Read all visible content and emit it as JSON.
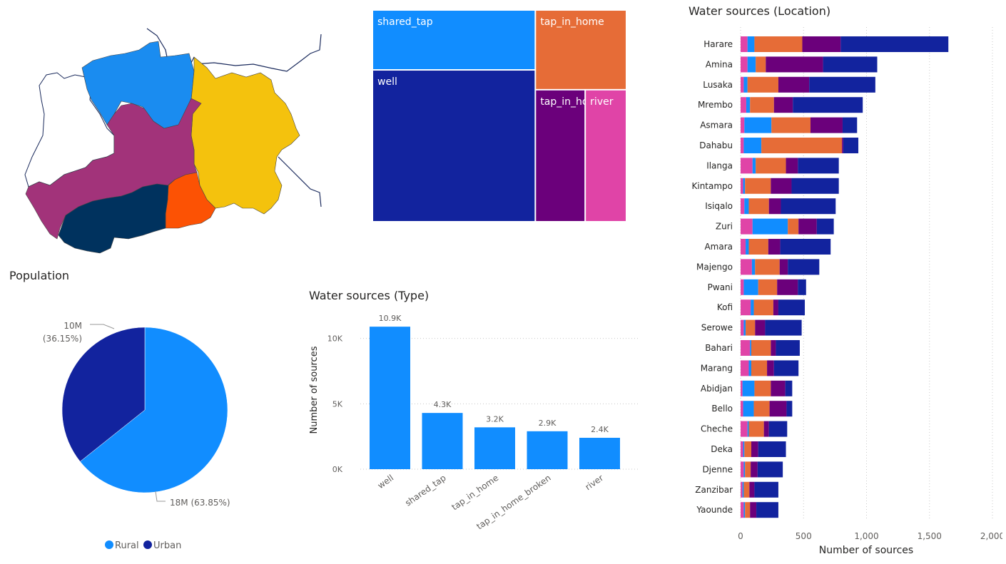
{
  "colors": {
    "shared_tap": "#118dff",
    "tap_in_home": "#e66c37",
    "tap_in_home_broken": "#6b007b",
    "river": "#e044a7",
    "well": "#12239e",
    "rural": "#118dff",
    "urban": "#12239e",
    "map_blue": "#1a8cf0",
    "map_yellow": "#f4c20d",
    "map_purple": "#a2337a",
    "map_orange": "#fc5204",
    "map_navy": "#00325e"
  },
  "treemap": {
    "type": "treemap",
    "items": [
      {
        "label": "shared_tap",
        "value": 4.3,
        "color_key": "shared_tap"
      },
      {
        "label": "well",
        "value": 10.9,
        "color_key": "well"
      },
      {
        "label": "tap_in_home",
        "value": 3.2,
        "color_key": "tap_in_home"
      },
      {
        "label": "tap_in_ho...",
        "value": 2.9,
        "color_key": "tap_in_home_broken"
      },
      {
        "label": "river",
        "value": 2.4,
        "color_key": "river"
      }
    ]
  },
  "population": {
    "title": "Population",
    "label_urban": "10M",
    "label_urban_pct": "(36.15%)",
    "label_rural": "18M (63.85%)",
    "legend_rural": "Rural",
    "legend_urban": "Urban"
  },
  "type_chart": {
    "title": "Water sources (Type)",
    "ylabel": "Number of sources"
  },
  "location_chart": {
    "title": "Water sources (Location)",
    "xlabel": "Number of sources"
  },
  "chart_data": [
    {
      "type": "pie",
      "title": "Population",
      "categories": [
        "Rural",
        "Urban"
      ],
      "values": [
        18,
        10
      ],
      "percent": [
        63.85,
        36.15
      ],
      "unit": "M",
      "legend": "bottom"
    },
    {
      "type": "bar",
      "title": "Water sources (Type)",
      "categories": [
        "well",
        "shared_tap",
        "tap_in_home",
        "tap_in_home_broken",
        "river"
      ],
      "values": [
        10900,
        4300,
        3200,
        2900,
        2400
      ],
      "data_labels": [
        "10.9K",
        "4.3K",
        "3.2K",
        "2.9K",
        "2.4K"
      ],
      "ylabel": "Number of sources",
      "ylim": [
        0,
        12000
      ],
      "yticks": [
        0,
        5000,
        10000
      ],
      "ytick_labels": [
        "0K",
        "5K",
        "10K"
      ],
      "grid": true
    },
    {
      "type": "bar",
      "orientation": "horizontal",
      "stacked": true,
      "title": "Water sources (Location)",
      "xlabel": "Number of sources",
      "xlim": [
        0,
        2000
      ],
      "xticks": [
        0,
        500,
        1000,
        1500,
        2000
      ],
      "xtick_labels": [
        "0",
        "500",
        "1,000",
        "1,500",
        "2,000"
      ],
      "grid": true,
      "categories": [
        "Harare",
        "Amina",
        "Lusaka",
        "Mrembo",
        "Asmara",
        "Dahabu",
        "Ilanga",
        "Kintampo",
        "Isiqalo",
        "Zuri",
        "Amara",
        "Majengo",
        "Pwani",
        "Kofi",
        "Serowe",
        "Bahari",
        "Marang",
        "Abidjan",
        "Bello",
        "Cheche",
        "Deka",
        "Djenne",
        "Zanzibar",
        "Yaounde"
      ],
      "series": [
        {
          "key": "river",
          "values": [
            55,
            55,
            25,
            45,
            30,
            25,
            95,
            20,
            30,
            95,
            40,
            90,
            25,
            80,
            25,
            75,
            65,
            15,
            20,
            55,
            20,
            25,
            15,
            25
          ]
        },
        {
          "key": "shared_tap",
          "values": [
            55,
            65,
            30,
            30,
            215,
            140,
            25,
            15,
            35,
            280,
            25,
            25,
            115,
            25,
            15,
            10,
            20,
            95,
            85,
            10,
            10,
            10,
            10,
            10
          ]
        },
        {
          "key": "tap_in_home",
          "values": [
            380,
            80,
            245,
            190,
            310,
            640,
            240,
            205,
            160,
            85,
            155,
            195,
            150,
            155,
            75,
            155,
            125,
            130,
            125,
            120,
            55,
            45,
            45,
            40
          ]
        },
        {
          "key": "tap_in_home_broken",
          "values": [
            305,
            455,
            245,
            150,
            255,
            10,
            95,
            165,
            95,
            145,
            95,
            65,
            165,
            40,
            80,
            40,
            55,
            115,
            135,
            40,
            55,
            55,
            40,
            50
          ]
        },
        {
          "key": "well",
          "values": [
            855,
            430,
            525,
            555,
            115,
            120,
            325,
            375,
            435,
            135,
            400,
            250,
            65,
            210,
            290,
            190,
            195,
            55,
            45,
            145,
            220,
            200,
            190,
            175
          ]
        }
      ]
    }
  ]
}
